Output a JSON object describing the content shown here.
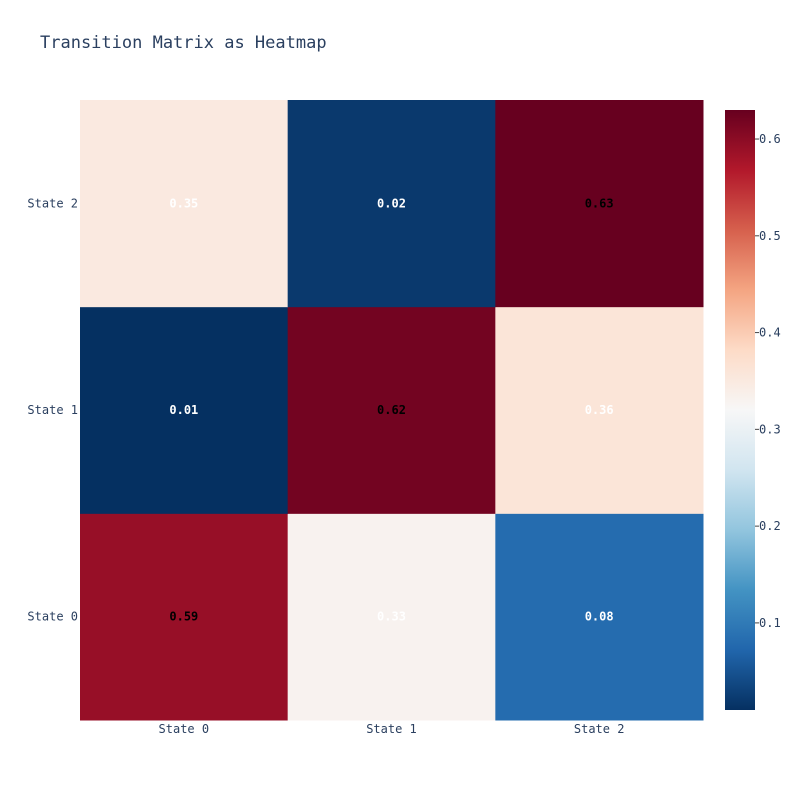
{
  "chart_data": {
    "type": "heatmap",
    "title": "Transition Matrix as Heatmap",
    "x_categories": [
      "State 0",
      "State 1",
      "State 2"
    ],
    "y_categories": [
      "State 0",
      "State 1",
      "State 2"
    ],
    "z": [
      [
        0.59,
        0.33,
        0.08
      ],
      [
        0.01,
        0.62,
        0.36
      ],
      [
        0.35,
        0.02,
        0.63
      ]
    ],
    "text": [
      [
        "0.59",
        "0.33",
        "0.08"
      ],
      [
        "0.01",
        "0.62",
        "0.36"
      ],
      [
        "0.35",
        "0.02",
        "0.63"
      ]
    ],
    "zmin": 0.01,
    "zmax": 0.63,
    "colorscale": "RdBu reversed",
    "colors": [
      "#053061",
      "#2166ac",
      "#4393c3",
      "#92c5de",
      "#d1e5f0",
      "#f7f7f7",
      "#fddbc7",
      "#f4a582",
      "#d6604d",
      "#b2182b",
      "#67001f"
    ],
    "colorbar_ticks": [
      {
        "value": 0.1,
        "label": "0.1"
      },
      {
        "value": 0.2,
        "label": "0.2"
      },
      {
        "value": 0.3,
        "label": "0.3"
      },
      {
        "value": 0.4,
        "label": "0.4"
      },
      {
        "value": 0.5,
        "label": "0.5"
      },
      {
        "value": 0.6,
        "label": "0.6"
      }
    ],
    "grid": false,
    "legend": "colorbar-right"
  }
}
